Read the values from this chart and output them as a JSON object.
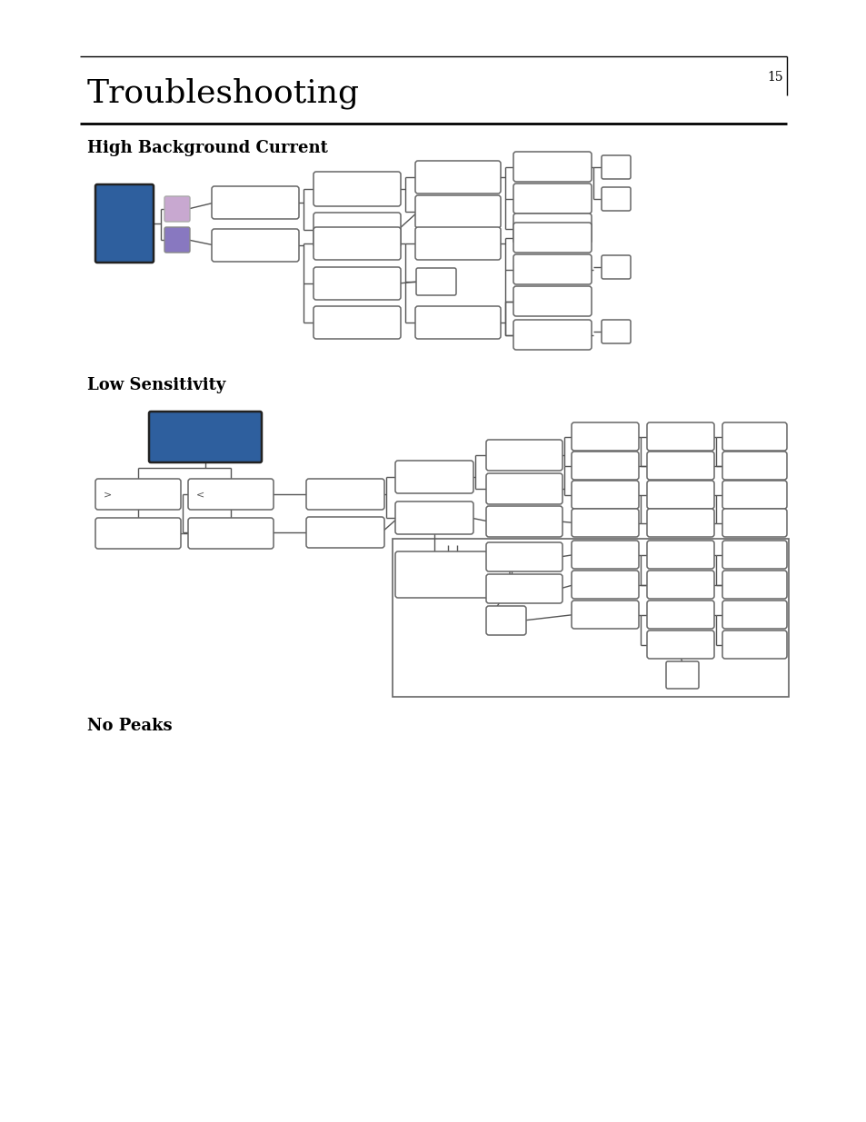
{
  "title": "Troubleshooting",
  "page_number": "15",
  "section1": "High Background Current",
  "section2": "Low Sensitivity",
  "section3": "No Peaks",
  "bg_color": "#ffffff",
  "dark_blue": "#2E5F9E",
  "light_purple": "#C8A8D0",
  "medium_purple": "#8878C0",
  "box_edge": "#666666",
  "box_fill": "#ffffff",
  "line_color": "#555555"
}
